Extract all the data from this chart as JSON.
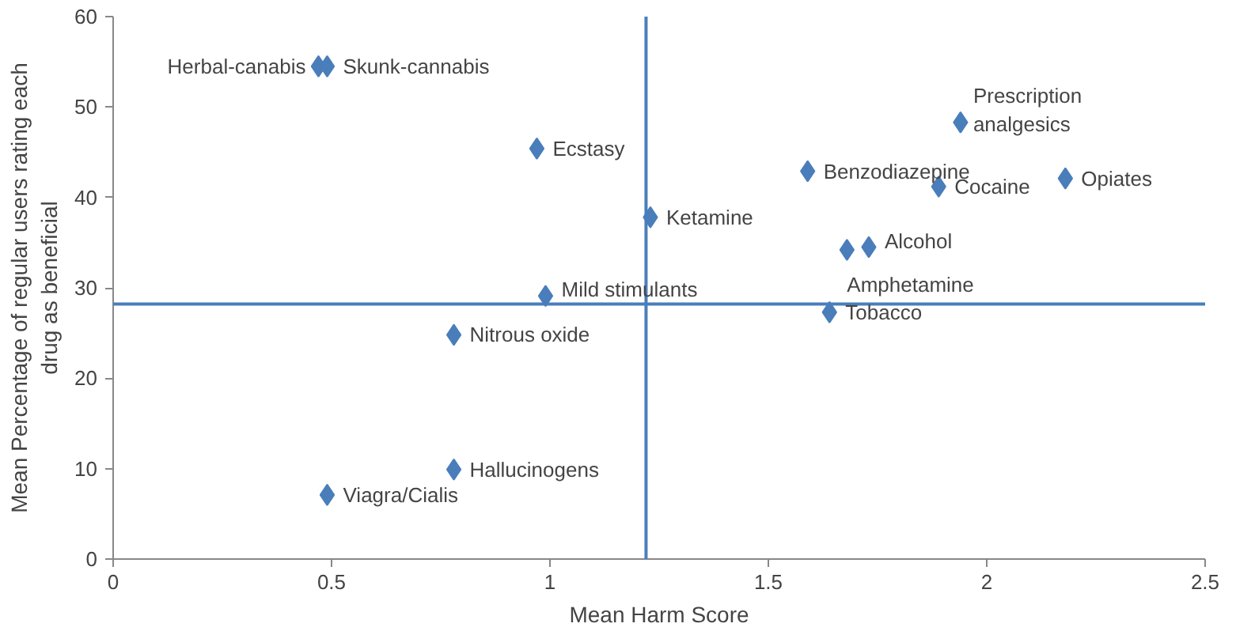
{
  "chart_data": {
    "type": "scatter",
    "xlabel": "Mean Harm Score",
    "ylabel": "Mean Percentage of regular users rating each drug as beneficial",
    "xlim": [
      0,
      2.5
    ],
    "ylim": [
      0,
      60
    ],
    "xticks": [
      0,
      0.5,
      1,
      1.5,
      2,
      2.5
    ],
    "yticks": [
      0,
      10,
      20,
      30,
      40,
      50,
      60
    ],
    "grid": false,
    "marker": "diamond",
    "series": [
      {
        "color": "#4a7ebb",
        "x": [
          0.47,
          0.49,
          0.97,
          1.23,
          0.99,
          0.78,
          0.78,
          0.49,
          1.59,
          1.94,
          1.89,
          2.18,
          1.73,
          1.68,
          1.64
        ],
        "values": [
          54.5,
          54.5,
          45.4,
          37.8,
          29.1,
          24.8,
          9.9,
          7.1,
          42.9,
          48.3,
          41.2,
          42.1,
          34.5,
          34.2,
          27.3
        ]
      }
    ],
    "annotations": [
      {
        "text": "Herbal-canabis",
        "x": 0.47,
        "y": 54.5
      },
      {
        "text": "Skunk-cannabis",
        "x": 0.49,
        "y": 54.5
      },
      {
        "text": "Ecstasy",
        "x": 0.97,
        "y": 45.4
      },
      {
        "text": "Ketamine",
        "x": 1.23,
        "y": 37.8
      },
      {
        "text": "Mild stimulants",
        "x": 0.99,
        "y": 29.1
      },
      {
        "text": "Nitrous oxide",
        "x": 0.78,
        "y": 24.8
      },
      {
        "text": "Hallucinogens",
        "x": 0.78,
        "y": 9.9
      },
      {
        "text": "Viagra/Cialis",
        "x": 0.49,
        "y": 7.1
      },
      {
        "text": "Benzodiazepine",
        "x": 1.59,
        "y": 42.9
      },
      {
        "text": "Prescription\nanalgesics",
        "x": 1.94,
        "y": 48.3
      },
      {
        "text": "Cocaine",
        "x": 1.89,
        "y": 41.2
      },
      {
        "text": "Opiates",
        "x": 2.18,
        "y": 42.1
      },
      {
        "text": "Alcohol",
        "x": 1.73,
        "y": 34.5
      },
      {
        "text": "Amphetamine",
        "x": 1.68,
        "y": 34.2
      },
      {
        "text": "Tobacco",
        "x": 1.64,
        "y": 27.3
      }
    ],
    "ref_lines": [
      {
        "axis": "y",
        "value": 28.2,
        "color": "#4a7ebb"
      },
      {
        "axis": "x",
        "value": 1.22,
        "color": "#4a7ebb"
      }
    ]
  }
}
